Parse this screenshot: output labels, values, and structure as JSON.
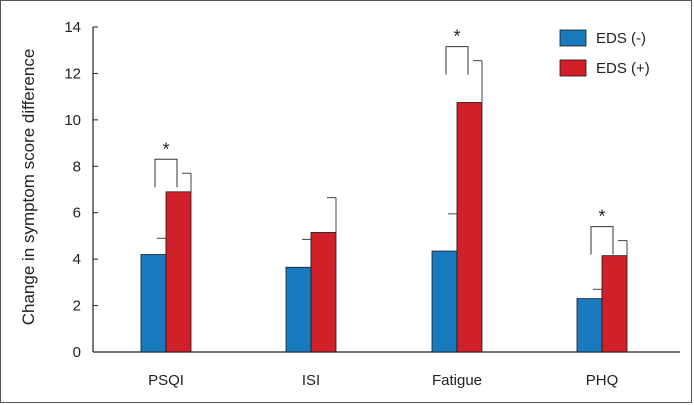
{
  "chart_data": {
    "type": "bar",
    "ylabel": "Change in symptom score difference",
    "xlabel": "",
    "ylim": [
      0,
      14
    ],
    "yticks": [
      0,
      2,
      4,
      6,
      8,
      10,
      12,
      14
    ],
    "categories": [
      "PSQI",
      "ISI",
      "Fatigue",
      "PHQ"
    ],
    "series": [
      {
        "name": "EDS (-)",
        "color": "#1a7abf",
        "values": [
          4.2,
          3.65,
          4.35,
          2.3
        ],
        "errors": [
          0.7,
          1.2,
          1.6,
          0.4
        ]
      },
      {
        "name": "EDS (+)",
        "color": "#d0202a",
        "values": [
          6.9,
          5.15,
          10.75,
          4.15
        ],
        "errors": [
          0.8,
          1.5,
          1.8,
          0.65
        ]
      }
    ],
    "significance": [
      {
        "category": "PSQI",
        "label": "*"
      },
      {
        "category": "Fatigue",
        "label": "*"
      },
      {
        "category": "PHQ",
        "label": "*"
      }
    ],
    "legend_position": "top-right",
    "grid": false
  }
}
